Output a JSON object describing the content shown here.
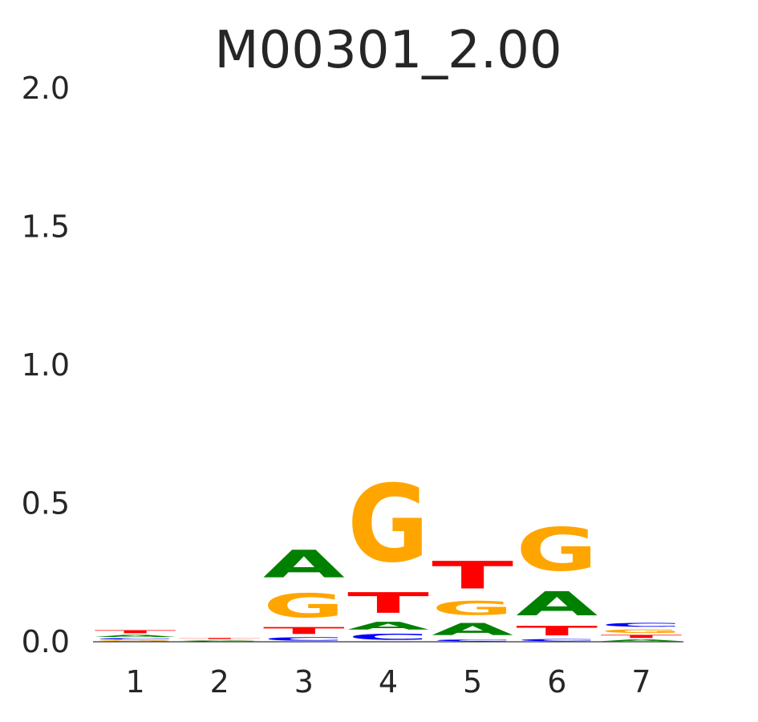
{
  "chart_data": {
    "type": "sequence_logo",
    "title": "M00301_2.00",
    "xlabel": "",
    "ylabel": "",
    "ylim": [
      0,
      2.0
    ],
    "yticks": [
      "0.0",
      "0.5",
      "1.0",
      "1.5",
      "2.0"
    ],
    "xticks": [
      "1",
      "2",
      "3",
      "4",
      "5",
      "6",
      "7"
    ],
    "grid": false,
    "colors": {
      "A": "#008000",
      "C": "#0000ff",
      "G": "#ffa500",
      "T": "#ff0000"
    },
    "positions": [
      {
        "position": "1",
        "letters": [
          {
            "base": "G",
            "height": 0.006
          },
          {
            "base": "C",
            "height": 0.009
          },
          {
            "base": "A",
            "height": 0.012
          },
          {
            "base": "T",
            "height": 0.018
          }
        ]
      },
      {
        "position": "2",
        "letters": [
          {
            "base": "C",
            "height": 0.003
          },
          {
            "base": "A",
            "height": 0.003
          },
          {
            "base": "G",
            "height": 0.003
          },
          {
            "base": "T",
            "height": 0.006
          }
        ]
      },
      {
        "position": "3",
        "letters": [
          {
            "base": "C",
            "height": 0.02
          },
          {
            "base": "T",
            "height": 0.04
          },
          {
            "base": "G",
            "height": 0.14
          },
          {
            "base": "A",
            "height": 0.16
          }
        ]
      },
      {
        "position": "4",
        "letters": [
          {
            "base": "C",
            "height": 0.035
          },
          {
            "base": "A",
            "height": 0.045
          },
          {
            "base": "T",
            "height": 0.12
          },
          {
            "base": "G",
            "height": 0.45
          }
        ]
      },
      {
        "position": "5",
        "letters": [
          {
            "base": "C",
            "height": 0.01
          },
          {
            "base": "A",
            "height": 0.07
          },
          {
            "base": "G",
            "height": 0.08
          },
          {
            "base": "T",
            "height": 0.16
          }
        ]
      },
      {
        "position": "6",
        "letters": [
          {
            "base": "C",
            "height": 0.012
          },
          {
            "base": "T",
            "height": 0.055
          },
          {
            "base": "A",
            "height": 0.14
          },
          {
            "base": "G",
            "height": 0.25
          }
        ]
      },
      {
        "position": "7",
        "letters": [
          {
            "base": "A",
            "height": 0.01
          },
          {
            "base": "T",
            "height": 0.018
          },
          {
            "base": "G",
            "height": 0.022
          },
          {
            "base": "C",
            "height": 0.022
          }
        ]
      }
    ]
  }
}
